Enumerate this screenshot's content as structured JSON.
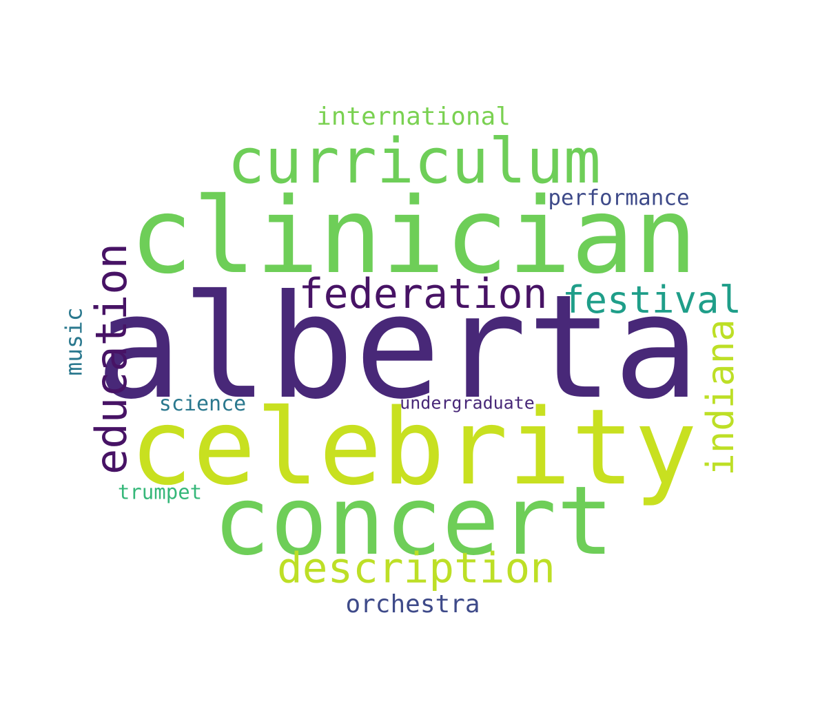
{
  "palette": {
    "dark_purple": "#482878",
    "green": "#6ece58",
    "lime": "#c8e020",
    "yellow_green": "#bddf26",
    "teal": "#1f9e89",
    "deep_purple": "#471365",
    "slate_blue": "#3e4a89",
    "blue_teal": "#2a788e",
    "sea_green": "#35b779",
    "light_green": "#7ad151"
  },
  "words": {
    "alberta": {
      "text": "alberta",
      "color": "#482878"
    },
    "clinician": {
      "text": "clinician",
      "color": "#6ece58"
    },
    "celebrity": {
      "text": "celebrity",
      "color": "#c8e020"
    },
    "concert": {
      "text": "concert",
      "color": "#6ece58"
    },
    "curriculum": {
      "text": "curriculum",
      "color": "#6ece58"
    },
    "education": {
      "text": "education",
      "color": "#471365"
    },
    "federation": {
      "text": "federation",
      "color": "#471365"
    },
    "festival": {
      "text": "festival",
      "color": "#1f9e89"
    },
    "indiana": {
      "text": "indiana",
      "color": "#bddf26"
    },
    "description": {
      "text": "description",
      "color": "#bddf26"
    },
    "international": {
      "text": "international",
      "color": "#7ad151"
    },
    "performance": {
      "text": "performance",
      "color": "#3e4a89"
    },
    "music": {
      "text": "music",
      "color": "#2a788e"
    },
    "science": {
      "text": "science",
      "color": "#2a788e"
    },
    "undergraduate": {
      "text": "undergraduate",
      "color": "#482878"
    },
    "trumpet": {
      "text": "trumpet",
      "color": "#35b779"
    },
    "orchestra": {
      "text": "orchestra",
      "color": "#3e4a89"
    }
  }
}
